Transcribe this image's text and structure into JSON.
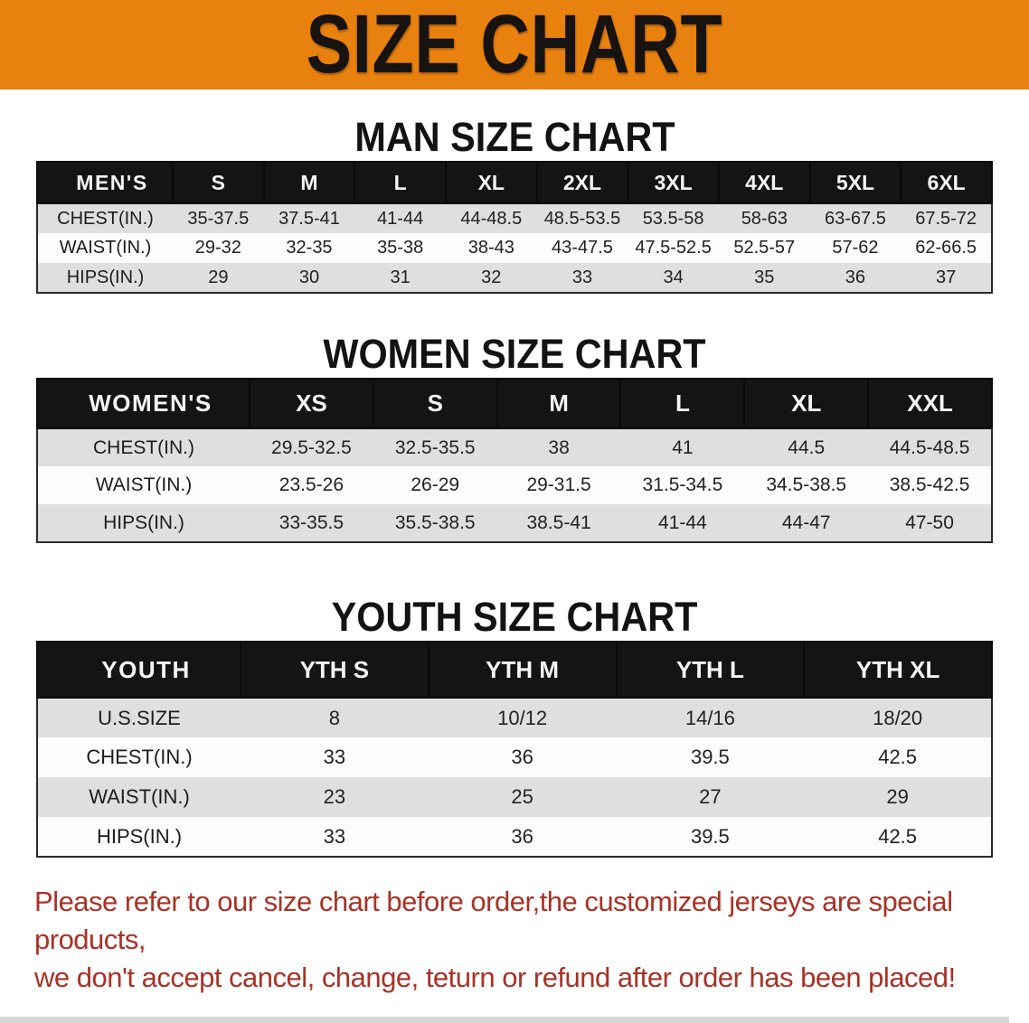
{
  "colors": {
    "banner-bg": "#E8810E",
    "band-bg": "#141414",
    "stripe-bg": "#DFDFDF",
    "notice-color": "#A93226"
  },
  "banner": {
    "title": "SIZE CHART"
  },
  "sections": [
    {
      "heading": "MAN SIZE CHART",
      "table": {
        "label": "MEN'S",
        "columns": [
          "S",
          "M",
          "L",
          "XL",
          "2XL",
          "3XL",
          "4XL",
          "5XL",
          "6XL"
        ],
        "rows": [
          {
            "label": "CHEST(IN.)",
            "values": [
              "35-37.5",
              "37.5-41",
              "41-44",
              "44-48.5",
              "48.5-53.5",
              "53.5-58",
              "58-63",
              "63-67.5",
              "67.5-72"
            ]
          },
          {
            "label": "WAIST(IN.)",
            "values": [
              "29-32",
              "32-35",
              "35-38",
              "38-43",
              "43-47.5",
              "47.5-52.5",
              "52.5-57",
              "57-62",
              "62-66.5"
            ]
          },
          {
            "label": "HIPS(IN.)",
            "values": [
              "29",
              "30",
              "31",
              "32",
              "33",
              "34",
              "35",
              "36",
              "37"
            ]
          }
        ]
      }
    },
    {
      "heading": "WOMEN SIZE CHART",
      "table": {
        "label": "WOMEN'S",
        "columns": [
          "XS",
          "S",
          "M",
          "L",
          "XL",
          "XXL"
        ],
        "rows": [
          {
            "label": "CHEST(IN.)",
            "values": [
              "29.5-32.5",
              "32.5-35.5",
              "38",
              "41",
              "44.5",
              "44.5-48.5"
            ]
          },
          {
            "label": "WAIST(IN.)",
            "values": [
              "23.5-26",
              "26-29",
              "29-31.5",
              "31.5-34.5",
              "34.5-38.5",
              "38.5-42.5"
            ]
          },
          {
            "label": "HIPS(IN.)",
            "values": [
              "33-35.5",
              "35.5-38.5",
              "38.5-41",
              "41-44",
              "44-47",
              "47-50"
            ]
          }
        ]
      }
    },
    {
      "heading": "YOUTH SIZE CHART",
      "table": {
        "label": "YOUTH",
        "columns": [
          "YTH S",
          "YTH M",
          "YTH L",
          "YTH XL"
        ],
        "rows": [
          {
            "label": "U.S.SIZE",
            "values": [
              "8",
              "10/12",
              "14/16",
              "18/20"
            ]
          },
          {
            "label": "CHEST(IN.)",
            "values": [
              "33",
              "36",
              "39.5",
              "42.5"
            ]
          },
          {
            "label": "WAIST(IN.)",
            "values": [
              "23",
              "25",
              "27",
              "29"
            ]
          },
          {
            "label": "HIPS(IN.)",
            "values": [
              "33",
              "36",
              "39.5",
              "42.5"
            ]
          }
        ]
      }
    }
  ],
  "notice": {
    "line1": "Please refer to our size chart before order,the customized jerseys are special products,",
    "line2": "we don't accept cancel, change, teturn or refund after order has been placed!"
  }
}
